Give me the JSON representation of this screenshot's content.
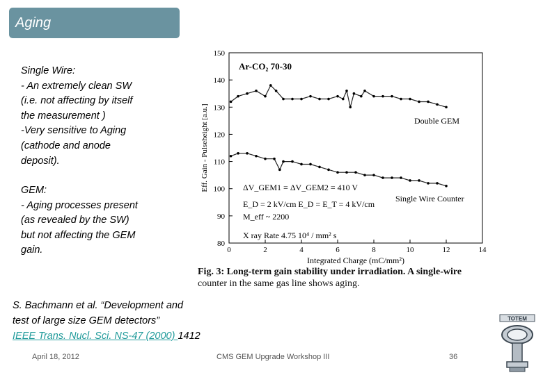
{
  "slide": {
    "title": "Aging",
    "single_wire": [
      "Single Wire:",
      "- An extremely clean SW",
      "(i.e. not affecting by itself",
      "the measurement )",
      "-Very sensitive to Aging",
      "(cathode and anode",
      "deposit)."
    ],
    "gem": [
      "GEM:",
      "- Aging processes present",
      "(as revealed by the SW)",
      "but not affecting the GEM",
      "gain."
    ],
    "reference": {
      "line1": "S. Bachmann et al. “Development and",
      "line2": "test of large size GEM detectors”",
      "link": "IEEE Trans. Nucl. Sci. NS-47 (2000) ",
      "page": "1412"
    },
    "footer": {
      "date": "April 18, 2012",
      "event": "CMS GEM Upgrade Workshop III",
      "page_number": "36"
    },
    "logo_text": "TOTEM",
    "accent_color": "#6a93a0",
    "link_color": "#1f9a9a"
  },
  "chart_data": {
    "type": "scatter",
    "xlabel": "Integrated Charge (mC/mm²)",
    "ylabel": "Eff. Gain - Pulseheight [a.u.]",
    "xlim": [
      0,
      14
    ],
    "ylim": [
      80,
      150
    ],
    "x_ticks": [
      "0",
      "2",
      "4",
      "6",
      "8",
      "10",
      "12",
      "14"
    ],
    "y_ticks": [
      "80",
      "90",
      "100",
      "110",
      "120",
      "130",
      "140",
      "150"
    ],
    "annotations": {
      "gas": "Ar-CO₂ 70-30",
      "voltage": "ΔV_GEM1 = ΔV_GEM2 = 410 V",
      "fields": "E_D = 2 kV/cm    E_D = E_T = 4 kV/cm",
      "meff": "M_eff ~ 2200",
      "rate": "X ray Rate 4.75 10⁴ / mm² s"
    },
    "series": [
      {
        "name": "Double GEM",
        "points": [
          [
            0.1,
            132
          ],
          [
            0.5,
            134
          ],
          [
            1.0,
            135
          ],
          [
            1.5,
            136
          ],
          [
            2.0,
            134
          ],
          [
            2.3,
            138
          ],
          [
            2.6,
            136
          ],
          [
            3.0,
            133
          ],
          [
            3.5,
            133
          ],
          [
            4.0,
            133
          ],
          [
            4.5,
            134
          ],
          [
            5.0,
            133
          ],
          [
            5.5,
            133
          ],
          [
            6.0,
            134
          ],
          [
            6.3,
            133
          ],
          [
            6.5,
            136
          ],
          [
            6.7,
            130
          ],
          [
            6.9,
            135
          ],
          [
            7.3,
            134
          ],
          [
            7.5,
            136
          ],
          [
            8.0,
            134
          ],
          [
            8.5,
            134
          ],
          [
            9.0,
            134
          ],
          [
            9.5,
            133
          ],
          [
            10.0,
            133
          ],
          [
            10.5,
            132
          ],
          [
            11.0,
            132
          ],
          [
            11.5,
            131
          ],
          [
            12.0,
            130
          ]
        ]
      },
      {
        "name": "Single Wire Counter",
        "points": [
          [
            0.1,
            112
          ],
          [
            0.5,
            113
          ],
          [
            1.0,
            113
          ],
          [
            1.5,
            112
          ],
          [
            2.0,
            111
          ],
          [
            2.5,
            111
          ],
          [
            2.8,
            107
          ],
          [
            3.0,
            110
          ],
          [
            3.5,
            110
          ],
          [
            4.0,
            109
          ],
          [
            4.5,
            109
          ],
          [
            5.0,
            108
          ],
          [
            5.5,
            107
          ],
          [
            6.0,
            106
          ],
          [
            6.5,
            106
          ],
          [
            7.0,
            106
          ],
          [
            7.5,
            105
          ],
          [
            8.0,
            105
          ],
          [
            8.5,
            104
          ],
          [
            9.0,
            104
          ],
          [
            9.5,
            104
          ],
          [
            10.0,
            103
          ],
          [
            10.5,
            103
          ],
          [
            11.0,
            102
          ],
          [
            11.5,
            102
          ],
          [
            12.0,
            101
          ]
        ]
      }
    ],
    "caption": [
      "Fig. 3: Long-term gain stability under irradiation. A single-wire",
      "counter in the same gas line shows aging."
    ]
  }
}
